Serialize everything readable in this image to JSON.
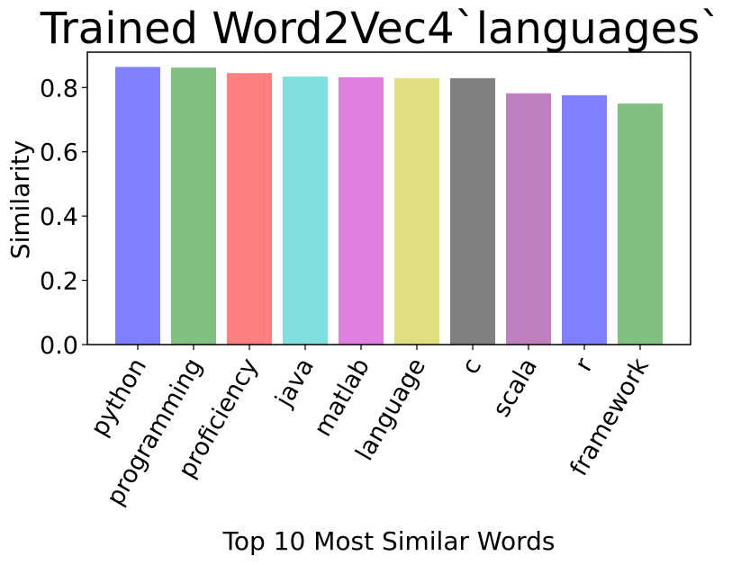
{
  "chart_data": {
    "type": "bar",
    "title": "Trained Word2Vec4`languages`",
    "xlabel": "Top 10 Most Similar Words",
    "ylabel": "Similarity",
    "categories": [
      "python",
      "programming",
      "proficiency",
      "java",
      "matlab",
      "language",
      "c",
      "scala",
      "r",
      "framework"
    ],
    "values": [
      0.864,
      0.862,
      0.845,
      0.834,
      0.832,
      0.829,
      0.829,
      0.782,
      0.776,
      0.75
    ],
    "bar_colors": [
      "#8080ff",
      "#80c080",
      "#ff8080",
      "#80dfdf",
      "#df80df",
      "#dfdf80",
      "#808080",
      "#bf80bf",
      "#8080ff",
      "#80c080"
    ],
    "ylim": [
      0,
      0.91
    ],
    "yticks": [
      0.0,
      0.2,
      0.4,
      0.6,
      0.8
    ],
    "ytick_labels": [
      "0.0",
      "0.2",
      "0.4",
      "0.6",
      "0.8"
    ],
    "grid": false,
    "legend": "none"
  }
}
